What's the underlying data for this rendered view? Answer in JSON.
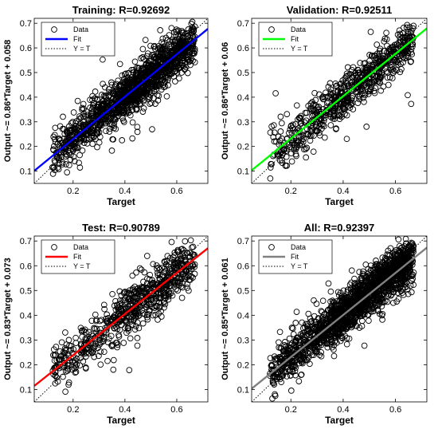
{
  "chart_data": [
    {
      "type": "scatter",
      "title": "Training: R=0.92692",
      "xlabel": "Target",
      "ylabel": "Output ~= 0.86*Target + 0.058",
      "xlim": [
        0.05,
        0.72
      ],
      "ylim": [
        0.05,
        0.72
      ],
      "xticks": [
        "0.2",
        "0.4",
        "0.6"
      ],
      "yticks": [
        "0.1",
        "0.2",
        "0.3",
        "0.4",
        "0.5",
        "0.6",
        "0.7"
      ],
      "grid": false,
      "legend_position": "top-left",
      "fit": {
        "slope": 0.86,
        "intercept": 0.058,
        "color": "#0000ff"
      },
      "legend": [
        "Data",
        "Fit",
        "Y = T"
      ],
      "n_points": 1400,
      "spread": 0.045
    },
    {
      "type": "scatter",
      "title": "Validation: R=0.92511",
      "xlabel": "Target",
      "ylabel": "Output ~= 0.86*Target + 0.06",
      "xlim": [
        0.05,
        0.72
      ],
      "ylim": [
        0.05,
        0.72
      ],
      "xticks": [
        "0.2",
        "0.4",
        "0.6"
      ],
      "yticks": [
        "0.1",
        "0.2",
        "0.3",
        "0.4",
        "0.5",
        "0.6",
        "0.7"
      ],
      "grid": false,
      "legend_position": "top-left",
      "fit": {
        "slope": 0.86,
        "intercept": 0.06,
        "color": "#00ff00"
      },
      "legend": [
        "Data",
        "Fit",
        "Y = T"
      ],
      "n_points": 700,
      "spread": 0.045
    },
    {
      "type": "scatter",
      "title": "Test: R=0.90789",
      "xlabel": "Target",
      "ylabel": "Output ~= 0.83*Target + 0.073",
      "xlim": [
        0.05,
        0.72
      ],
      "ylim": [
        0.05,
        0.72
      ],
      "xticks": [
        "0.2",
        "0.4",
        "0.6"
      ],
      "yticks": [
        "0.1",
        "0.2",
        "0.3",
        "0.4",
        "0.5",
        "0.6",
        "0.7"
      ],
      "grid": false,
      "legend_position": "top-left",
      "fit": {
        "slope": 0.83,
        "intercept": 0.073,
        "color": "#ff0000"
      },
      "legend": [
        "Data",
        "Fit",
        "Y = T"
      ],
      "n_points": 700,
      "spread": 0.05
    },
    {
      "type": "scatter",
      "title": "All: R=0.92397",
      "xlabel": "Target",
      "ylabel": "Output ~= 0.85*Target + 0.061",
      "xlim": [
        0.05,
        0.72
      ],
      "ylim": [
        0.05,
        0.72
      ],
      "xticks": [
        "0.2",
        "0.4",
        "0.6"
      ],
      "yticks": [
        "0.1",
        "0.2",
        "0.3",
        "0.4",
        "0.5",
        "0.6",
        "0.7"
      ],
      "grid": false,
      "legend_position": "top-left",
      "fit": {
        "slope": 0.85,
        "intercept": 0.061,
        "color": "#808080"
      },
      "legend": [
        "Data",
        "Fit",
        "Y = T"
      ],
      "n_points": 1800,
      "spread": 0.045
    }
  ]
}
